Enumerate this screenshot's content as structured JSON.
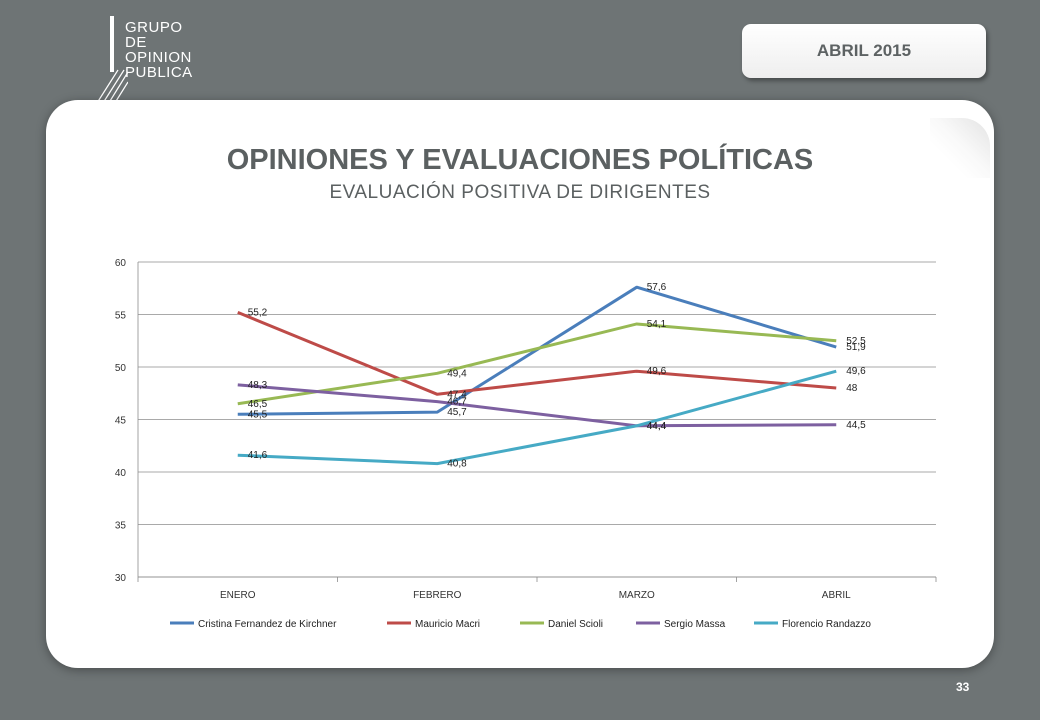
{
  "header": {
    "logo_lines": [
      "GRUPO",
      "DE",
      "OPINION",
      "PUBLICA"
    ],
    "date": "ABRIL 2015"
  },
  "title": "OPINIONES Y EVALUACIONES POLÍTICAS",
  "subtitle": "EVALUACIÓN  POSITIVA DE DIRIGENTES",
  "page_number": "33",
  "chart_data": {
    "type": "line",
    "categories": [
      "ENERO",
      "FEBRERO",
      "MARZO",
      "ABRIL"
    ],
    "ylim": [
      30,
      60
    ],
    "yticks": [
      30,
      35,
      40,
      45,
      50,
      55,
      60
    ],
    "grid": true,
    "legend_position": "bottom",
    "series": [
      {
        "name": "Cristina Fernandez de Kirchner",
        "color": "#4a7ebb",
        "values": [
          45.5,
          45.7,
          57.6,
          51.9
        ],
        "labels": [
          "45,5",
          "45,7",
          "57,6",
          "51,9"
        ]
      },
      {
        "name": "Mauricio Macri",
        "color": "#be4b48",
        "values": [
          55.2,
          47.4,
          49.6,
          48
        ],
        "labels": [
          "55,2",
          "47,4",
          "49,6",
          "48"
        ]
      },
      {
        "name": "Daniel Scioli",
        "color": "#98b954",
        "values": [
          46.5,
          49.4,
          54.1,
          52.5
        ],
        "labels": [
          "46,5",
          "49,4",
          "54,1",
          "52,5"
        ]
      },
      {
        "name": "Sergio Massa",
        "color": "#7d60a0",
        "values": [
          48.3,
          46.7,
          44.4,
          44.5
        ],
        "labels": [
          "48,3",
          "46,7",
          "44,4",
          "44,5"
        ]
      },
      {
        "name": "Florencio Randazzo",
        "color": "#46aac5",
        "values": [
          41.6,
          40.8,
          44.4,
          49.6
        ],
        "labels": [
          "41,6",
          "40,8",
          "44,4",
          "49,6"
        ]
      }
    ]
  }
}
